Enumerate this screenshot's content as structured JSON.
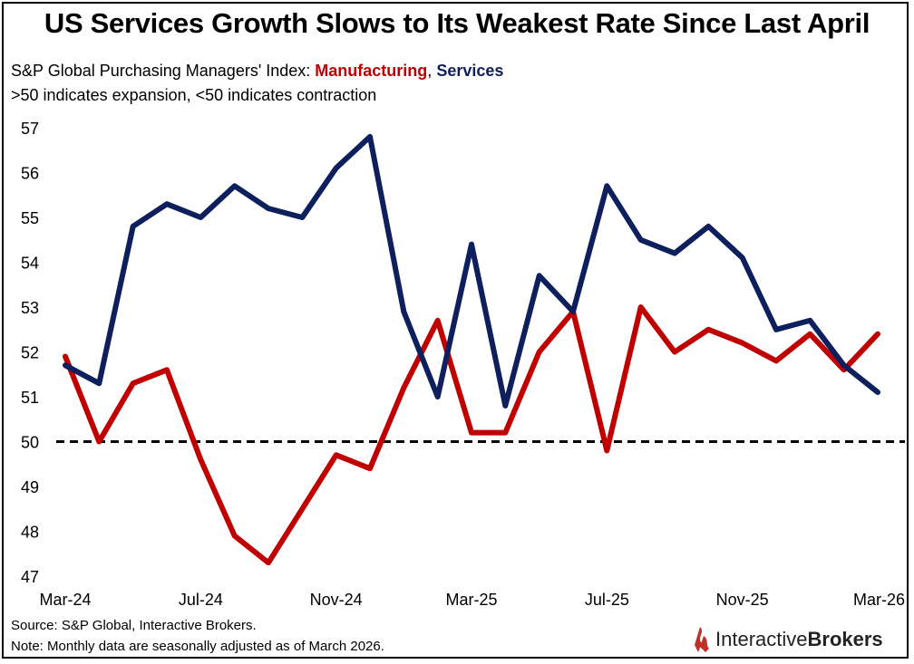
{
  "header": {
    "title": "US Services Growth Slows to Its Weakest Rate Since Last April",
    "subtitle_prefix": "S&P Global Purchasing Managers' Index: ",
    "subtitle_mfg": "Manufacturing",
    "subtitle_sep": ", ",
    "subtitle_svc": "Services",
    "subtitle2": ">50 indicates expansion, <50 indicates contraction"
  },
  "footer": {
    "source": "Source: S&P Global, Interactive Brokers.",
    "note": "Note: Monthly data are seasonally adjusted as of March 2026."
  },
  "logo": {
    "text_a": "Interactive",
    "text_b": "Brokers",
    "color": "#c0302a"
  },
  "chart_data": {
    "type": "line",
    "title": "US Services Growth Slows to Its Weakest Rate Since Last April",
    "xlabel": "",
    "ylabel": "",
    "x": [
      "Mar-24",
      "Apr-24",
      "May-24",
      "Jun-24",
      "Jul-24",
      "Aug-24",
      "Sep-24",
      "Oct-24",
      "Nov-24",
      "Dec-24",
      "Jan-25",
      "Feb-25",
      "Mar-25",
      "Apr-25",
      "May-25",
      "Jun-25",
      "Jul-25",
      "Aug-25",
      "Sep-25",
      "Oct-25",
      "Nov-25",
      "Dec-25",
      "Jan-26",
      "Feb-26",
      "Mar-26"
    ],
    "x_tick_labels": [
      "Mar-24",
      "Jul-24",
      "Nov-24",
      "Mar-25",
      "Jul-25",
      "Nov-25",
      "Mar-26"
    ],
    "ylim": [
      47,
      57
    ],
    "y_ticks": [
      47,
      48,
      49,
      50,
      51,
      52,
      53,
      54,
      55,
      56,
      57
    ],
    "grid": false,
    "reference_line": {
      "y": 50,
      "style": "dashed",
      "color": "#000000"
    },
    "series": [
      {
        "name": "Manufacturing",
        "color": "#c00000",
        "values": [
          51.9,
          50.0,
          51.3,
          51.6,
          49.6,
          47.9,
          47.3,
          48.5,
          49.7,
          49.4,
          51.2,
          52.7,
          50.2,
          50.2,
          52.0,
          52.9,
          49.8,
          53.0,
          52.0,
          52.5,
          52.2,
          51.8,
          52.4,
          51.6,
          52.4
        ]
      },
      {
        "name": "Services",
        "color": "#0d1f5c",
        "values": [
          51.7,
          51.3,
          54.8,
          55.3,
          55.0,
          55.7,
          55.2,
          55.0,
          56.1,
          56.8,
          52.9,
          51.0,
          54.4,
          50.8,
          53.7,
          52.9,
          55.7,
          54.5,
          54.2,
          54.8,
          54.1,
          52.5,
          52.7,
          51.7,
          51.1
        ]
      }
    ]
  }
}
